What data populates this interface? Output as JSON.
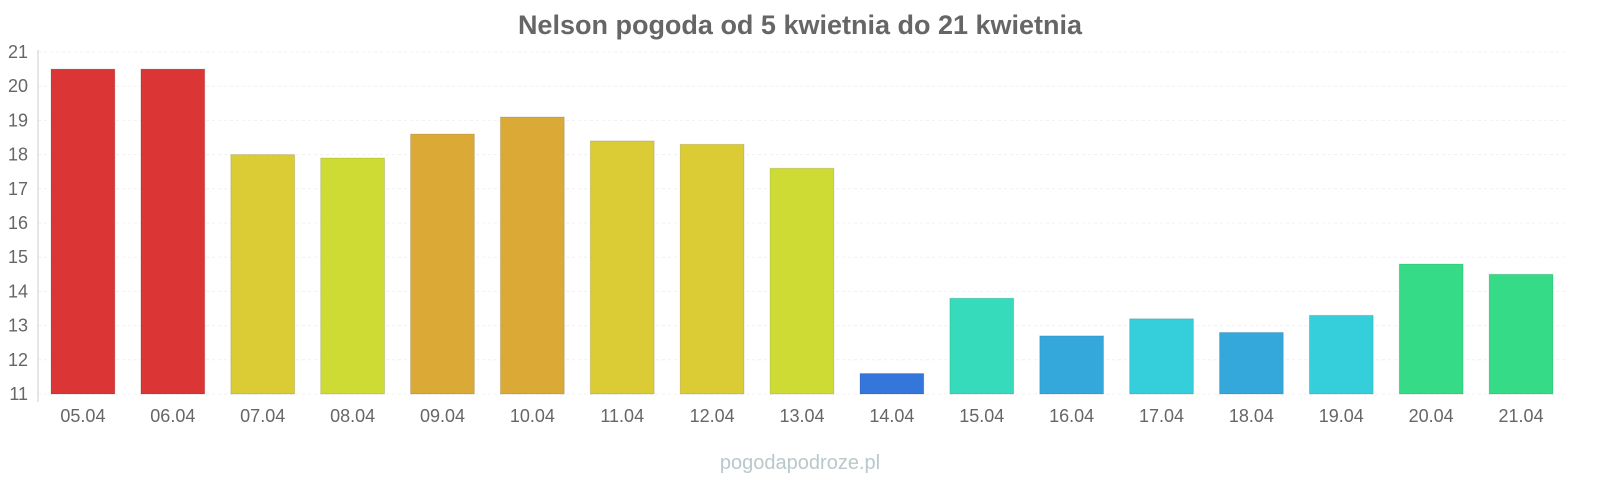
{
  "chart_data": {
    "type": "bar",
    "title": "Nelson pogoda od 5 kwietnia do 21 kwietnia",
    "xlabel": "",
    "ylabel": "",
    "categories": [
      "05.04",
      "06.04",
      "07.04",
      "08.04",
      "09.04",
      "10.04",
      "11.04",
      "12.04",
      "13.04",
      "14.04",
      "15.04",
      "16.04",
      "17.04",
      "18.04",
      "19.04",
      "20.04",
      "21.04"
    ],
    "values": [
      20.5,
      20.5,
      18.0,
      17.9,
      18.6,
      19.1,
      18.4,
      18.3,
      17.6,
      11.6,
      13.8,
      12.7,
      13.2,
      12.8,
      13.3,
      14.8,
      14.5
    ],
    "colors": [
      "#db3535",
      "#db3535",
      "#dbcb35",
      "#cfdb35",
      "#dba935",
      "#dba935",
      "#dbcb35",
      "#dbcb35",
      "#cfdb35",
      "#3576db",
      "#35dbbb",
      "#35a8db",
      "#35cedb",
      "#35a8db",
      "#35cedb",
      "#35db87",
      "#35db87"
    ],
    "yticks": [
      11,
      12,
      13,
      14,
      15,
      16,
      17,
      18,
      19,
      20,
      21
    ],
    "ylim": [
      11,
      21
    ],
    "grid": true,
    "legend": "none"
  },
  "watermark": "pogodapodroze.pl"
}
